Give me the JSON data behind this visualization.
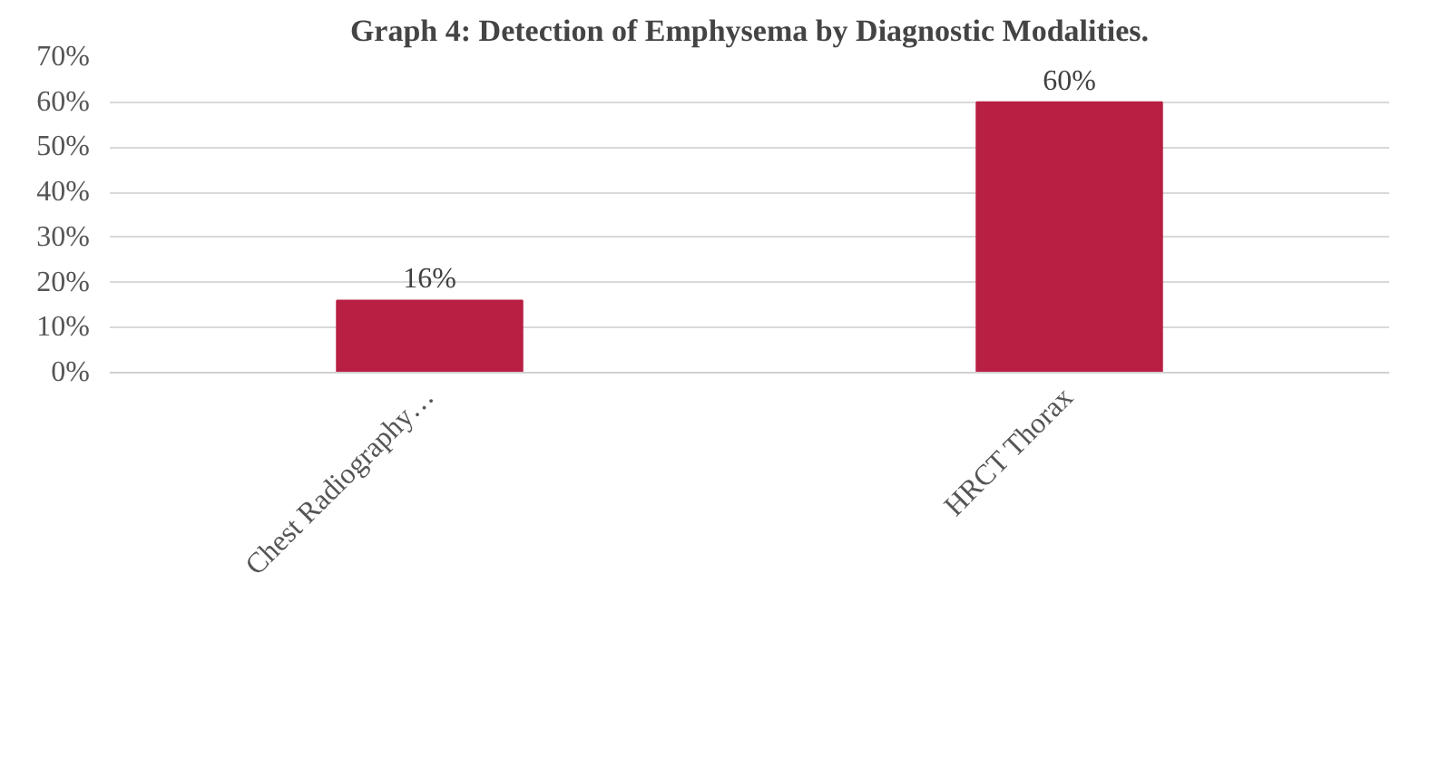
{
  "chart_data": {
    "type": "bar",
    "title": "Graph 4: Detection of Emphysema by Diagnostic Modalities.",
    "categories": [
      "Chest Radiography…",
      "HRCT Thorax"
    ],
    "values": [
      16,
      60
    ],
    "color": "#b81f42",
    "value_labels": [
      "16%",
      "60%"
    ],
    "ylim": [
      0,
      70
    ],
    "yticks": [
      {
        "value": 0,
        "label": "0%"
      },
      {
        "value": 10,
        "label": "10%"
      },
      {
        "value": 20,
        "label": "20%"
      },
      {
        "value": 30,
        "label": "30%"
      },
      {
        "value": 40,
        "label": "40%"
      },
      {
        "value": 50,
        "label": "50%"
      },
      {
        "value": 60,
        "label": "60%"
      },
      {
        "value": 70,
        "label": "70%"
      }
    ],
    "grid": "y"
  }
}
